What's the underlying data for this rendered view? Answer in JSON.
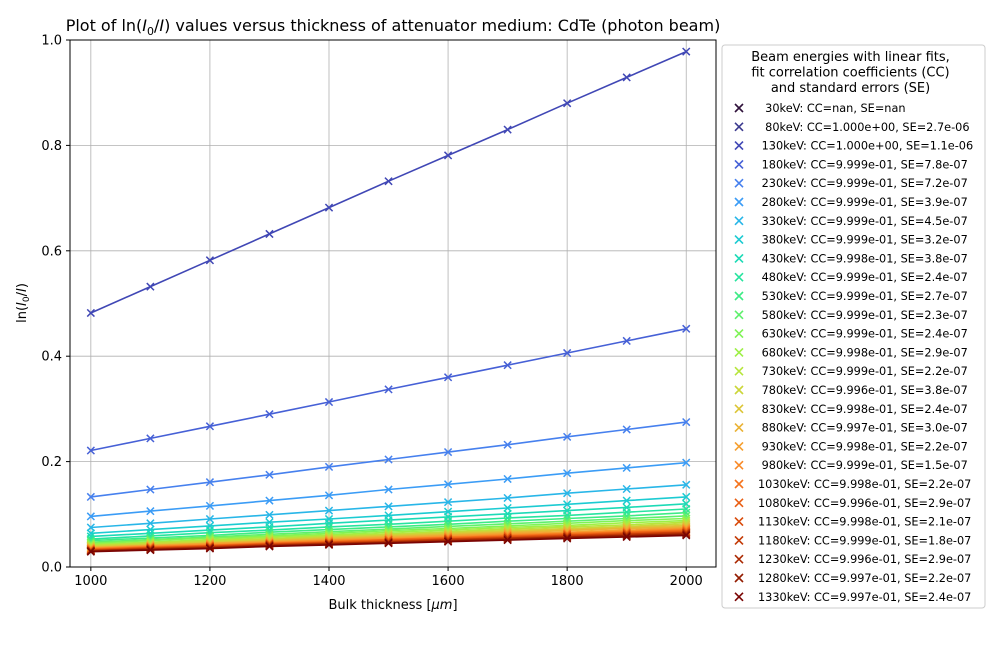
{
  "chart_data": {
    "type": "line",
    "title_prefix": "Plot of ln(",
    "title_i0": "I",
    "title_i0_sub": "0",
    "title_slash": "/",
    "title_i": "I",
    "title_suffix": ") values versus thickness of attenuator medium: CdTe (photon beam)",
    "xlabel_text": "Bulk thickness [",
    "xlabel_unit": "μm",
    "xlabel_close": "]",
    "ylabel_prefix": "ln(",
    "ylabel_i0": "I",
    "ylabel_i0_sub": "0",
    "ylabel_slash": "/",
    "ylabel_i": "I",
    "ylabel_suffix": ")",
    "xlim": [
      965,
      2050
    ],
    "ylim": [
      0,
      1.0
    ],
    "xticks": [
      1000,
      1200,
      1400,
      1600,
      1800,
      2000
    ],
    "xtick_labels": [
      "1000",
      "1200",
      "1400",
      "1600",
      "1800",
      "2000"
    ],
    "yticks": [
      0.0,
      0.2,
      0.4,
      0.6,
      0.8,
      1.0
    ],
    "ytick_labels": [
      "0.0",
      "0.2",
      "0.4",
      "0.6",
      "0.8",
      "1.0"
    ],
    "grid": true,
    "legend_position": "outside-right",
    "legend_title": [
      "Beam energies with linear fits,",
      "fit correlation coefficients (CC)",
      "and standard errors (SE)"
    ],
    "x": [
      1000,
      1100,
      1200,
      1300,
      1400,
      1500,
      1600,
      1700,
      1800,
      1900,
      2000
    ],
    "series": [
      {
        "name": "  30keV: CC=nan, SE=nan",
        "color": "#30123b",
        "values": null
      },
      {
        "name": "  80keV: CC=1.000e+00, SE=2.7e-06",
        "color": "#3c3a8f",
        "values": null
      },
      {
        "name": " 130keV: CC=1.000e+00, SE=1.1e-06",
        "color": "#4047b5",
        "values": [
          0.482,
          0.532,
          0.582,
          0.632,
          0.682,
          0.732,
          0.781,
          0.83,
          0.88,
          0.929,
          0.978
        ]
      },
      {
        "name": " 180keV: CC=9.999e-01, SE=7.8e-07",
        "color": "#4660d6",
        "values": [
          0.221,
          0.244,
          0.267,
          0.29,
          0.313,
          0.337,
          0.36,
          0.383,
          0.406,
          0.429,
          0.452
        ]
      },
      {
        "name": " 230keV: CC=9.999e-01, SE=7.2e-07",
        "color": "#4680ee",
        "values": [
          0.133,
          0.147,
          0.161,
          0.175,
          0.19,
          0.204,
          0.218,
          0.232,
          0.247,
          0.261,
          0.275
        ]
      },
      {
        "name": " 280keV: CC=9.999e-01, SE=3.9e-07",
        "color": "#3b9cf6",
        "values": [
          0.096,
          0.106,
          0.116,
          0.126,
          0.136,
          0.147,
          0.157,
          0.167,
          0.178,
          0.188,
          0.198
        ]
      },
      {
        "name": " 330keV: CC=9.999e-01, SE=4.5e-07",
        "color": "#28b6e8",
        "values": [
          0.075,
          0.083,
          0.091,
          0.099,
          0.107,
          0.115,
          0.123,
          0.131,
          0.14,
          0.148,
          0.156
        ]
      },
      {
        "name": " 380keV: CC=9.999e-01, SE=3.2e-07",
        "color": "#1ccbd2",
        "values": [
          0.064,
          0.071,
          0.078,
          0.085,
          0.091,
          0.098,
          0.105,
          0.112,
          0.119,
          0.126,
          0.133
        ]
      },
      {
        "name": " 430keV: CC=9.998e-01, SE=3.8e-07",
        "color": "#1cdab6",
        "values": [
          0.058,
          0.064,
          0.07,
          0.076,
          0.083,
          0.089,
          0.095,
          0.101,
          0.107,
          0.113,
          0.12
        ]
      },
      {
        "name": " 480keV: CC=9.999e-01, SE=2.4e-07",
        "color": "#27e49f",
        "values": [
          0.053,
          0.059,
          0.065,
          0.07,
          0.076,
          0.081,
          0.087,
          0.093,
          0.098,
          0.104,
          0.11
        ]
      },
      {
        "name": " 530keV: CC=9.999e-01, SE=2.7e-07",
        "color": "#3deb85",
        "values": [
          0.05,
          0.055,
          0.06,
          0.066,
          0.071,
          0.076,
          0.081,
          0.087,
          0.092,
          0.097,
          0.103
        ]
      },
      {
        "name": " 580keV: CC=9.999e-01, SE=2.3e-07",
        "color": "#5ef06c",
        "values": [
          0.047,
          0.052,
          0.057,
          0.062,
          0.067,
          0.072,
          0.077,
          0.082,
          0.087,
          0.092,
          0.097
        ]
      },
      {
        "name": " 630keV: CC=9.999e-01, SE=2.4e-07",
        "color": "#7ff356",
        "values": [
          0.045,
          0.05,
          0.055,
          0.059,
          0.064,
          0.069,
          0.073,
          0.078,
          0.083,
          0.088,
          0.092
        ]
      },
      {
        "name": " 680keV: CC=9.998e-01, SE=2.9e-07",
        "color": "#9df046",
        "values": [
          0.043,
          0.047,
          0.052,
          0.057,
          0.061,
          0.066,
          0.07,
          0.075,
          0.079,
          0.084,
          0.088
        ]
      },
      {
        "name": " 730keV: CC=9.999e-01, SE=2.2e-07",
        "color": "#b6e53c",
        "values": [
          0.041,
          0.046,
          0.05,
          0.054,
          0.059,
          0.063,
          0.067,
          0.072,
          0.076,
          0.08,
          0.085
        ]
      },
      {
        "name": " 780keV: CC=9.996e-01, SE=3.8e-07",
        "color": "#cbd638",
        "values": [
          0.04,
          0.044,
          0.048,
          0.052,
          0.057,
          0.061,
          0.065,
          0.069,
          0.073,
          0.077,
          0.082
        ]
      },
      {
        "name": " 830keV: CC=9.998e-01, SE=2.4e-07",
        "color": "#dcc536",
        "values": [
          0.038,
          0.042,
          0.046,
          0.05,
          0.055,
          0.059,
          0.063,
          0.067,
          0.071,
          0.075,
          0.079
        ]
      },
      {
        "name": " 880keV: CC=9.997e-01, SE=3.0e-07",
        "color": "#eab234",
        "values": [
          0.037,
          0.041,
          0.045,
          0.049,
          0.053,
          0.057,
          0.061,
          0.065,
          0.069,
          0.073,
          0.076
        ]
      },
      {
        "name": " 930keV: CC=9.998e-01, SE=2.2e-07",
        "color": "#f59f30",
        "values": [
          0.036,
          0.04,
          0.044,
          0.047,
          0.051,
          0.055,
          0.059,
          0.063,
          0.066,
          0.07,
          0.074
        ]
      },
      {
        "name": " 980keV: CC=9.999e-01, SE=1.5e-07",
        "color": "#f98a27",
        "values": [
          0.035,
          0.039,
          0.042,
          0.046,
          0.05,
          0.053,
          0.057,
          0.061,
          0.064,
          0.068,
          0.072
        ]
      },
      {
        "name": "1030keV: CC=9.998e-01, SE=2.2e-07",
        "color": "#f5731c",
        "values": [
          0.034,
          0.038,
          0.041,
          0.045,
          0.048,
          0.052,
          0.056,
          0.059,
          0.063,
          0.066,
          0.07
        ]
      },
      {
        "name": "1080keV: CC=9.996e-01, SE=2.9e-07",
        "color": "#e95e13",
        "values": [
          0.033,
          0.037,
          0.04,
          0.044,
          0.047,
          0.051,
          0.054,
          0.058,
          0.061,
          0.065,
          0.068
        ]
      },
      {
        "name": "1130keV: CC=9.998e-01, SE=2.1e-07",
        "color": "#d84b0b",
        "values": [
          0.032,
          0.036,
          0.039,
          0.043,
          0.046,
          0.049,
          0.053,
          0.056,
          0.06,
          0.063,
          0.066
        ]
      },
      {
        "name": "1180keV: CC=9.999e-01, SE=1.8e-07",
        "color": "#c33a06",
        "values": [
          0.031,
          0.035,
          0.038,
          0.042,
          0.045,
          0.048,
          0.052,
          0.055,
          0.058,
          0.062,
          0.065
        ]
      },
      {
        "name": "1230keV: CC=9.996e-01, SE=2.9e-07",
        "color": "#ab2a03",
        "values": [
          0.031,
          0.034,
          0.037,
          0.041,
          0.044,
          0.047,
          0.05,
          0.054,
          0.057,
          0.06,
          0.063
        ]
      },
      {
        "name": "1280keV: CC=9.997e-01, SE=2.2e-07",
        "color": "#931c01",
        "values": [
          0.03,
          0.033,
          0.036,
          0.04,
          0.043,
          0.046,
          0.049,
          0.052,
          0.056,
          0.059,
          0.062
        ]
      },
      {
        "name": "1330keV: CC=9.997e-01, SE=2.4e-07",
        "color": "#7a0403",
        "values": [
          0.029,
          0.032,
          0.035,
          0.039,
          0.042,
          0.045,
          0.048,
          0.051,
          0.054,
          0.057,
          0.06
        ]
      }
    ]
  }
}
